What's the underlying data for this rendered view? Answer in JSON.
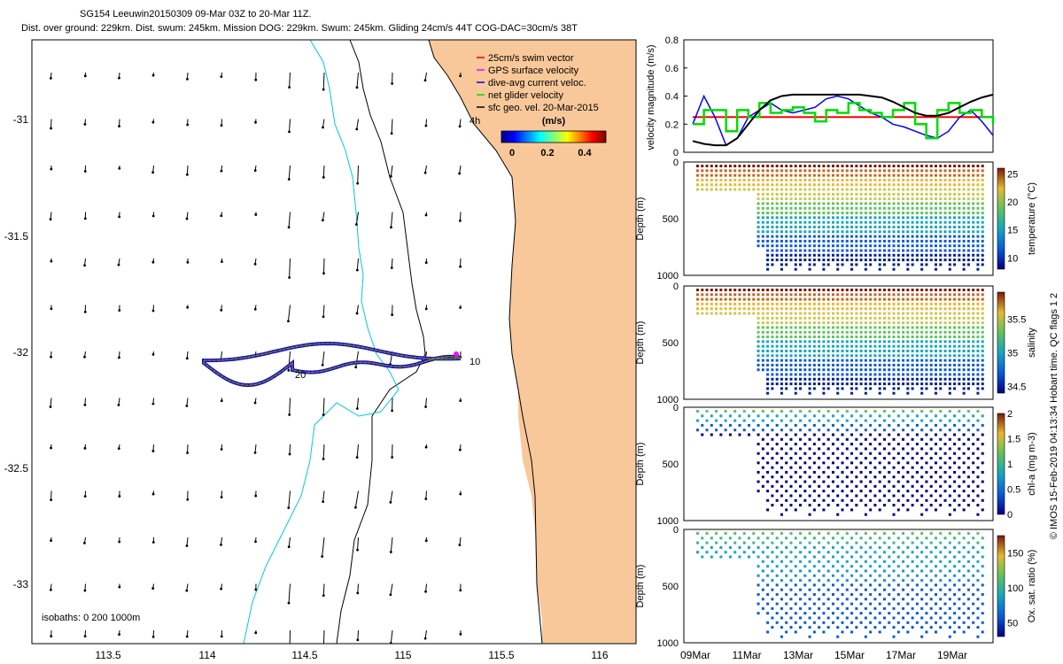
{
  "header": {
    "line1": "SG154 Leeuwin20150309 09-Mar 03Z to 20-Mar 11Z.",
    "line2": "Dist. over ground: 229km. Dist. swum: 245km. Mission DOG: 229km. Swum: 245km. Gliding 24cm/s 44T COG-DAC=30cm/s 38T"
  },
  "colors": {
    "land": "#f9c89a",
    "isobath_0": "#000000",
    "isobath_200": "#00c8e0",
    "isobath_1000": "#000000",
    "swim": "#ff0000",
    "gps": "#ff00ff",
    "dac": "#0000ff",
    "net": "#00dd00",
    "geo": "#000000",
    "magnitude_line": "#000000"
  },
  "map": {
    "lon_ticks": [
      "113.5",
      "114",
      "114.5",
      "115",
      "115.5",
      "116"
    ],
    "lat_ticks": [
      "-31",
      "-31.5",
      "-32",
      "-32.5",
      "-33"
    ],
    "lon_range": [
      113.1,
      116.2
    ],
    "lat_range": [
      -33.3,
      -30.75
    ],
    "isobath_label": "isobaths: 0   200  1000m",
    "track_labels": [
      "10",
      "20",
      "4h"
    ],
    "legend": {
      "items": [
        {
          "label": "25cm/s swim vector",
          "color": "#ff0000"
        },
        {
          "label": "GPS surface velocity",
          "color": "#ff00ff"
        },
        {
          "label": "dive-avg current veloc.",
          "color": "#0000ff"
        },
        {
          "label": "net glider velocity",
          "color": "#00dd00"
        },
        {
          "label": "sfc geo. vel. 20-Mar-2015",
          "color": "#000000"
        }
      ],
      "colorbar_title": "(m/s)",
      "colorbar_ticks": [
        "0",
        "0.2",
        "0.4"
      ]
    }
  },
  "chart_data": [
    {
      "type": "line",
      "title": "",
      "ylabel": "velocity magnitude (m/s)",
      "ylim": [
        0,
        0.8
      ],
      "yticks": [
        "0",
        "0.2",
        "0.4",
        "0.6",
        "0.8"
      ],
      "x": [
        0,
        0.5,
        1,
        1.5,
        2,
        2.5,
        3,
        3.5,
        4,
        4.5,
        5,
        5.5,
        6,
        6.5,
        7,
        7.5,
        8,
        8.5,
        9,
        9.5,
        10,
        10.5,
        11,
        11.5,
        12,
        12.5,
        13,
        13.5
      ],
      "series": [
        {
          "name": "swim speed",
          "values": [
            0.25,
            0.25,
            0.25,
            0.25,
            0.25,
            0.25,
            0.25,
            0.25,
            0.25,
            0.25,
            0.25,
            0.25,
            0.25,
            0.25,
            0.25,
            0.25,
            0.25,
            0.25,
            0.25,
            0.25,
            0.25,
            0.25,
            0.25,
            0.25,
            0.25,
            0.25,
            0.25,
            0.25
          ]
        },
        {
          "name": "dive-avg current",
          "values": [
            0.2,
            0.4,
            0.25,
            0.05,
            0.1,
            0.25,
            0.3,
            0.35,
            0.3,
            0.28,
            0.3,
            0.32,
            0.38,
            0.4,
            0.38,
            0.33,
            0.28,
            0.25,
            0.2,
            0.18,
            0.15,
            0.12,
            0.1,
            0.15,
            0.25,
            0.3,
            0.22,
            0.12
          ]
        },
        {
          "name": "net glider",
          "values": [
            0.2,
            0.3,
            0.3,
            0.15,
            0.3,
            0.25,
            0.35,
            0.28,
            0.3,
            0.32,
            0.28,
            0.22,
            0.3,
            0.28,
            0.35,
            0.3,
            0.28,
            0.25,
            0.3,
            0.35,
            0.2,
            0.1,
            0.3,
            0.35,
            0.28,
            0.3,
            0.25,
            0.2
          ]
        },
        {
          "name": "sfc geo speed",
          "values": [
            0.08,
            0.06,
            0.05,
            0.05,
            0.1,
            0.2,
            0.3,
            0.37,
            0.4,
            0.41,
            0.41,
            0.41,
            0.41,
            0.41,
            0.41,
            0.41,
            0.4,
            0.39,
            0.36,
            0.32,
            0.28,
            0.26,
            0.26,
            0.28,
            0.32,
            0.36,
            0.39,
            0.41
          ]
        }
      ]
    },
    {
      "type": "scatter",
      "variable": "temperature",
      "ylabel": "Depth (m)",
      "yticks": [
        "0",
        "500",
        "1000"
      ],
      "clabel": "temperature (°C)",
      "cticks": [
        "10",
        "15",
        "20",
        "25"
      ],
      "crange": [
        8,
        26
      ]
    },
    {
      "type": "scatter",
      "variable": "salinity",
      "ylabel": "Depth (m)",
      "yticks": [
        "0",
        "500",
        "1000"
      ],
      "clabel": "salinity",
      "cticks": [
        "34.5",
        "35",
        "35.5"
      ],
      "crange": [
        34.4,
        35.9
      ]
    },
    {
      "type": "scatter",
      "variable": "chl-a",
      "ylabel": "Depth (m)",
      "yticks": [
        "0",
        "500",
        "1000"
      ],
      "clabel": "chl-a (mg m-3)",
      "cticks": [
        "0",
        "0.5",
        "1",
        "1.5",
        "2"
      ],
      "crange": [
        0,
        2
      ]
    },
    {
      "type": "scatter",
      "variable": "oxygen saturation",
      "ylabel": "Depth (m)",
      "yticks": [
        "0",
        "500",
        "1000"
      ],
      "clabel": "Ox. sat. ratio (%)",
      "cticks": [
        "50",
        "100",
        "150"
      ],
      "crange": [
        30,
        175
      ]
    }
  ],
  "time_axis": {
    "labels": [
      "09Mar",
      "11Mar",
      "13Mar",
      "15Mar",
      "17Mar",
      "19Mar"
    ]
  },
  "side_note": "© IMOS 15-Feb-2019 04:13:34 Hobart time. QC flags 1  2"
}
